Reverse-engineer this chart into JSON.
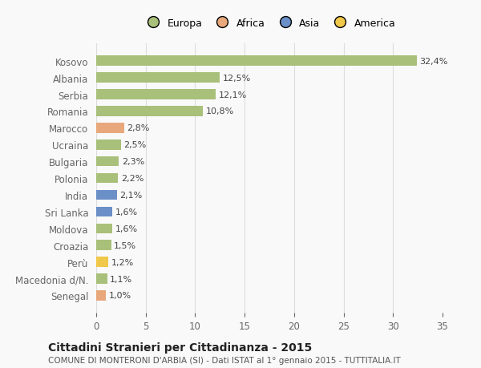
{
  "countries": [
    "Senegal",
    "Macedonia d/N.",
    "Perù",
    "Croazia",
    "Moldova",
    "Sri Lanka",
    "India",
    "Polonia",
    "Bulgaria",
    "Ucraina",
    "Marocco",
    "Romania",
    "Serbia",
    "Albania",
    "Kosovo"
  ],
  "values": [
    1.0,
    1.1,
    1.2,
    1.5,
    1.6,
    1.6,
    2.1,
    2.2,
    2.3,
    2.5,
    2.8,
    10.8,
    12.1,
    12.5,
    32.4
  ],
  "labels": [
    "1,0%",
    "1,1%",
    "1,2%",
    "1,5%",
    "1,6%",
    "1,6%",
    "2,1%",
    "2,2%",
    "2,3%",
    "2,5%",
    "2,8%",
    "10,8%",
    "12,1%",
    "12,5%",
    "32,4%"
  ],
  "continents": [
    "Africa",
    "Europa",
    "America",
    "Europa",
    "Europa",
    "Asia",
    "Asia",
    "Europa",
    "Europa",
    "Europa",
    "Africa",
    "Europa",
    "Europa",
    "Europa",
    "Europa"
  ],
  "colors": {
    "Europa": "#a8c07a",
    "Africa": "#e8a87c",
    "Asia": "#6b8fc7",
    "America": "#f0c84a"
  },
  "xlim": [
    0,
    35
  ],
  "xticks": [
    0,
    5,
    10,
    15,
    20,
    25,
    30,
    35
  ],
  "title": "Cittadini Stranieri per Cittadinanza - 2015",
  "subtitle": "COMUNE DI MONTERONI D'ARBIA (SI) - Dati ISTAT al 1° gennaio 2015 - TUTTITALIA.IT",
  "background_color": "#f9f9f9",
  "grid_color": "#dddddd",
  "bar_height": 0.6,
  "legend_order": [
    "Europa",
    "Africa",
    "Asia",
    "America"
  ]
}
